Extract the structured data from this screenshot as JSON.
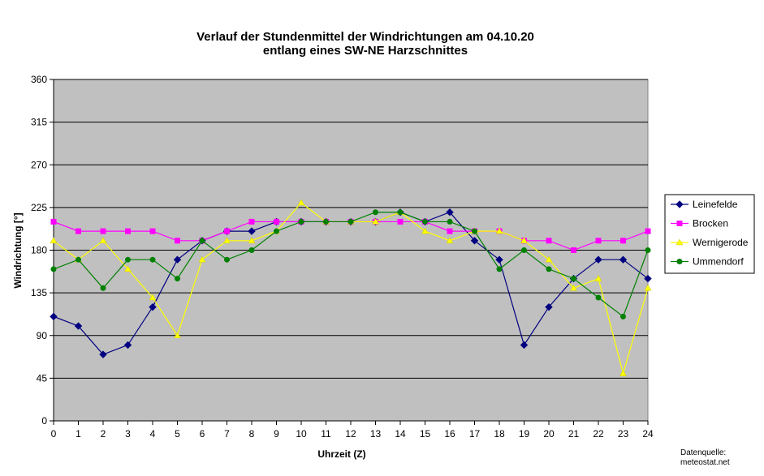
{
  "chart_data": {
    "type": "line",
    "title": "Verlauf der Stundenmittel der Windrichtungen am 04.10.20",
    "subtitle": "entlang eines SW-NE Harzschnittes",
    "xlabel": "Uhrzeit (Z)",
    "ylabel": "Windrichtung [°]",
    "x": [
      0,
      1,
      2,
      3,
      4,
      5,
      6,
      7,
      8,
      9,
      10,
      11,
      12,
      13,
      14,
      15,
      16,
      17,
      18,
      19,
      20,
      21,
      22,
      23,
      24
    ],
    "xlim": [
      0,
      24
    ],
    "ylim": [
      0,
      360
    ],
    "yticks": [
      0,
      45,
      90,
      135,
      180,
      225,
      270,
      315,
      360
    ],
    "grid": "horizontal",
    "plot_background": "#c0c0c0",
    "legend_position": "right",
    "series": [
      {
        "name": "Leinefelde",
        "color": "#000080",
        "marker": "diamond",
        "values": [
          110,
          100,
          70,
          80,
          120,
          170,
          190,
          200,
          200,
          210,
          210,
          210,
          210,
          210,
          220,
          210,
          220,
          190,
          170,
          80,
          120,
          150,
          170,
          170,
          150
        ]
      },
      {
        "name": "Brocken",
        "color": "#ff00ff",
        "marker": "square",
        "values": [
          210,
          200,
          200,
          200,
          200,
          190,
          190,
          200,
          210,
          210,
          210,
          210,
          210,
          210,
          210,
          210,
          200,
          200,
          200,
          190,
          190,
          180,
          190,
          190,
          200
        ]
      },
      {
        "name": "Wernigerode",
        "color": "#ffff00",
        "marker": "triangle",
        "values": [
          190,
          170,
          190,
          160,
          130,
          90,
          170,
          190,
          190,
          200,
          230,
          210,
          210,
          210,
          220,
          200,
          190,
          200,
          200,
          190,
          170,
          140,
          150,
          50,
          140
        ]
      },
      {
        "name": "Ummendorf",
        "color": "#008000",
        "marker": "circle",
        "values": [
          160,
          170,
          140,
          170,
          170,
          150,
          190,
          170,
          180,
          200,
          210,
          210,
          210,
          220,
          220,
          210,
          210,
          200,
          160,
          180,
          160,
          150,
          130,
          110,
          180
        ]
      }
    ]
  },
  "source": {
    "line1": "Datenquelle:",
    "line2": "meteostat.net"
  }
}
